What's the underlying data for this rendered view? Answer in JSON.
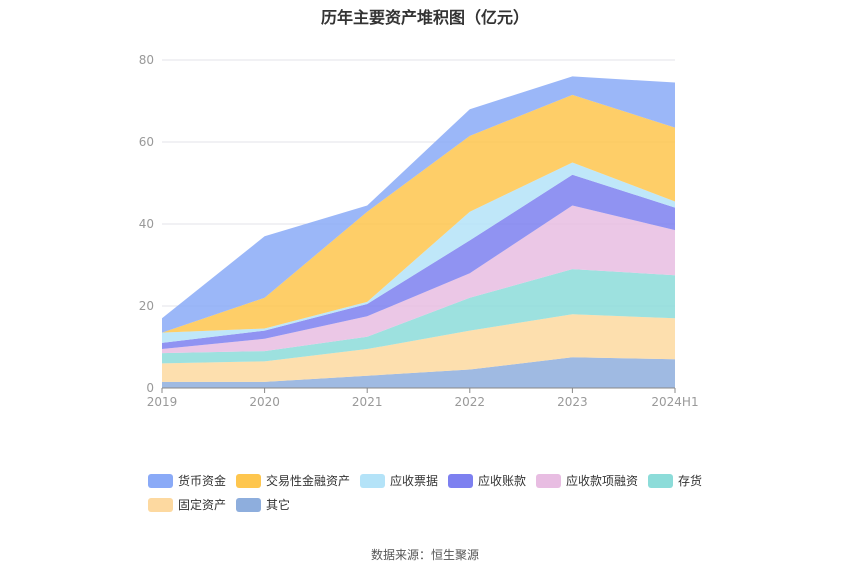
{
  "chart_data": {
    "type": "area",
    "stacked": true,
    "title": "历年主要资产堆积图（亿元）",
    "categories": [
      "2019",
      "2020",
      "2021",
      "2022",
      "2023",
      "2024H1"
    ],
    "ylim": [
      0,
      80
    ],
    "yticks": [
      0,
      20,
      40,
      60,
      80
    ],
    "grid": true,
    "legend_position": "bottom",
    "series": [
      {
        "name": "其它",
        "color": "#8eaedd",
        "values": [
          1.5,
          1.5,
          3.0,
          4.5,
          7.5,
          7.0
        ]
      },
      {
        "name": "固定资产",
        "color": "#fdd9a0",
        "values": [
          4.5,
          5.0,
          6.5,
          9.5,
          10.5,
          10.0
        ]
      },
      {
        "name": "存货",
        "color": "#8cdcd9",
        "values": [
          2.5,
          2.5,
          3.0,
          8.0,
          11.0,
          10.5
        ]
      },
      {
        "name": "应收款项融资",
        "color": "#e8bde2",
        "values": [
          1.0,
          3.0,
          5.0,
          6.0,
          15.5,
          11.0
        ]
      },
      {
        "name": "应收账款",
        "color": "#7d80f0",
        "values": [
          1.5,
          2.0,
          3.0,
          8.0,
          7.5,
          5.5
        ]
      },
      {
        "name": "应收票据",
        "color": "#b4e3f8",
        "values": [
          2.5,
          0.5,
          0.5,
          7.0,
          3.0,
          1.5
        ]
      },
      {
        "name": "交易性金融资产",
        "color": "#fec64e",
        "values": [
          0.0,
          7.5,
          22.0,
          18.5,
          16.5,
          18.0
        ]
      },
      {
        "name": "货币资金",
        "color": "#8aaaf7",
        "values": [
          3.5,
          15.0,
          1.5,
          6.5,
          4.5,
          11.0
        ]
      }
    ]
  },
  "legend_order": [
    "货币资金",
    "交易性金融资产",
    "应收票据",
    "应收账款",
    "应收款项融资",
    "存货",
    "固定资产",
    "其它"
  ],
  "source": "数据来源：恒生聚源"
}
